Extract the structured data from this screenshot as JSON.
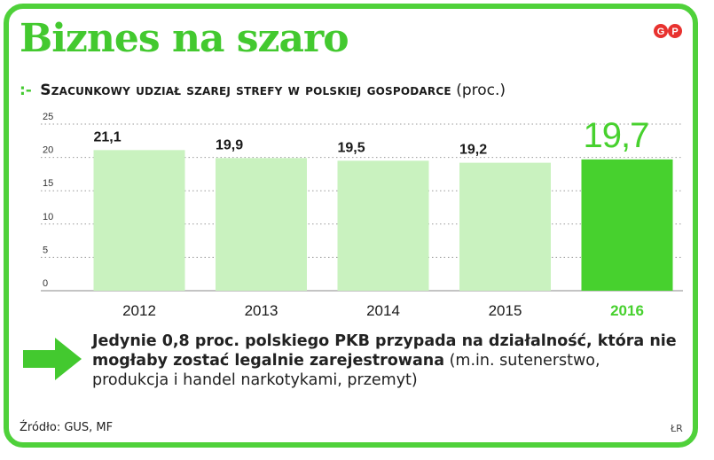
{
  "header": {
    "title": "Biznes na szaro",
    "logo_text": "GP",
    "subtitle_marker": ":-",
    "subtitle": "Szacunkowy udział szarej strefy w polskiej gospodarce",
    "subtitle_unit": "(proc.)"
  },
  "chart_data": {
    "type": "bar",
    "categories": [
      "2012",
      "2013",
      "2014",
      "2015",
      "2016"
    ],
    "values": [
      21.1,
      19.9,
      19.5,
      19.2,
      19.7
    ],
    "data_labels": [
      "21,1",
      "19,9",
      "19,5",
      "19,2",
      "19,7"
    ],
    "highlight_category": "2016",
    "y_ticks": [
      0,
      5,
      10,
      15,
      20,
      25
    ],
    "ylim": [
      0,
      25
    ],
    "grid": "dotted",
    "colors": {
      "bar": "#c9f2bf",
      "highlight": "#47d12e",
      "label": "#1a1a1a",
      "highlight_label": "#47d12e"
    }
  },
  "note": {
    "bold": "Jedynie 0,8 proc. polskiego PKB przypada na działalność, która nie mogłaby zostać legalnie zarejestrowana",
    "normal": " (m.in. sutenerstwo, produkcja i handel narkotykami, przemyt)"
  },
  "footer": {
    "source": "Źródło: GUS, MF",
    "credit": "ŁR"
  },
  "colors": {
    "accent": "#43c92f",
    "frame": "#4fd13a"
  }
}
